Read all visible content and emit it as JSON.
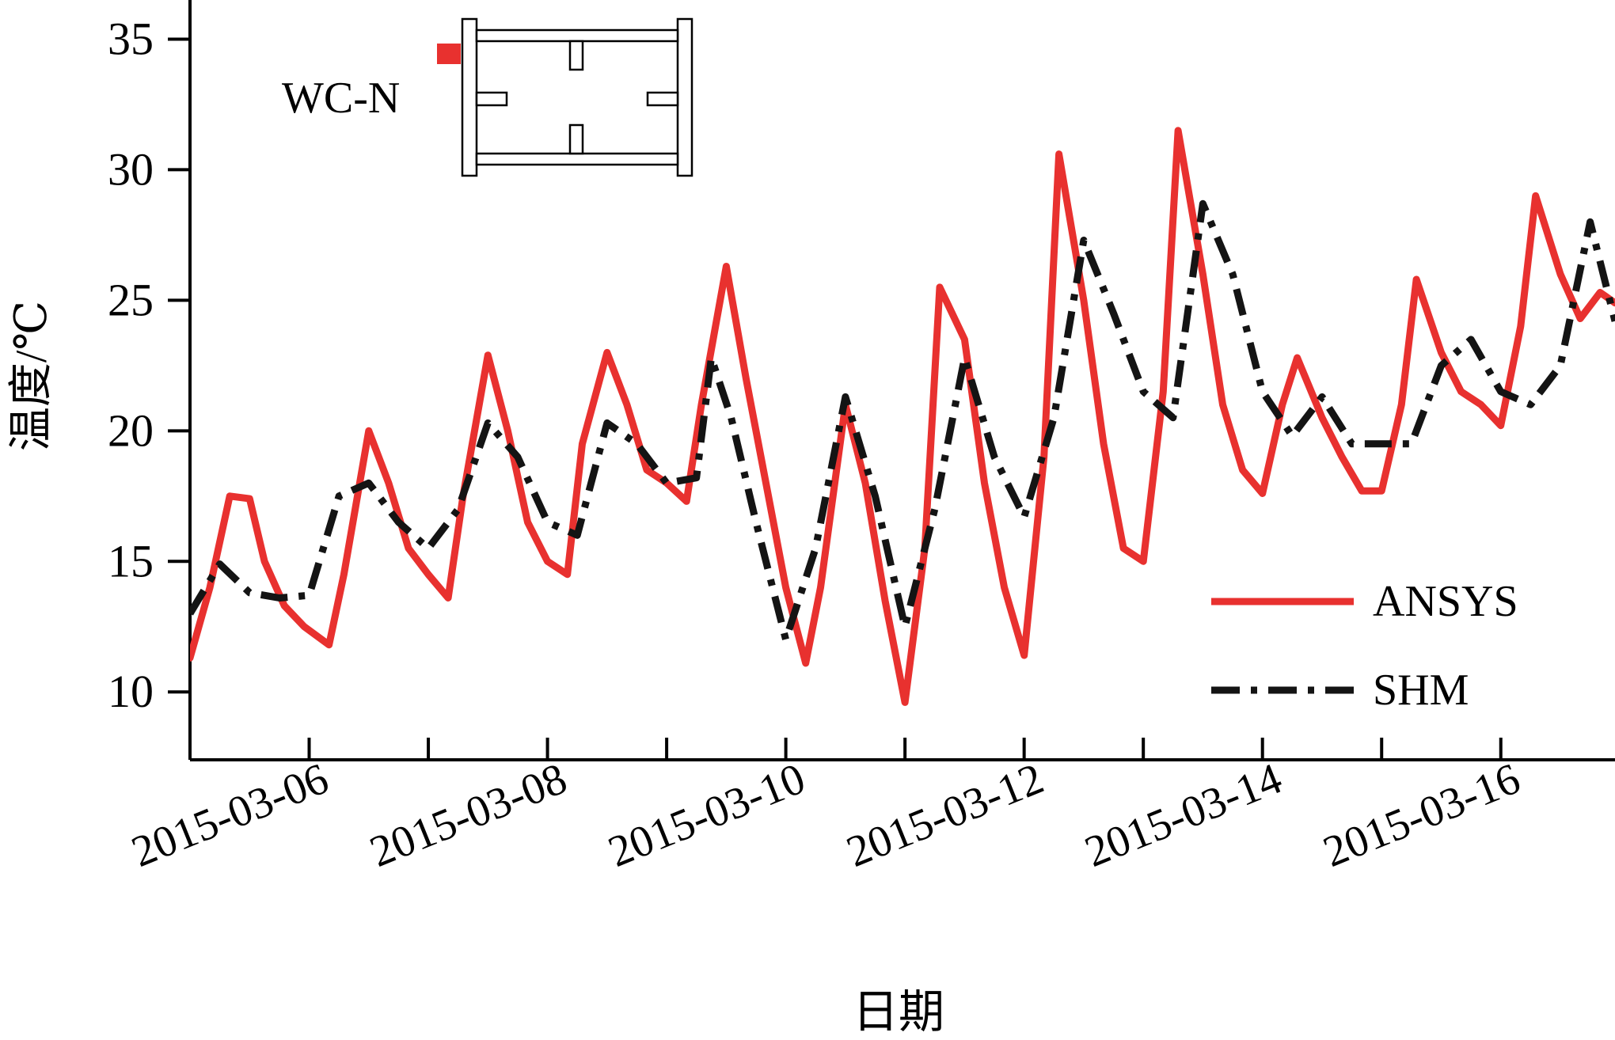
{
  "chart_data": {
    "type": "line",
    "title": "",
    "xlabel": "日期",
    "ylabel": "温度/℃",
    "x_type": "date",
    "xlim": [
      "2015-03-05T00:00",
      "2015-03-16T23:00"
    ],
    "ylim": [
      7.4,
      36.5
    ],
    "yticks": [
      10,
      15,
      20,
      25,
      30,
      35
    ],
    "yticklabels": [
      "10",
      "15",
      "20",
      "25",
      "30",
      "35"
    ],
    "xticks": [
      "2015-03-06",
      "2015-03-07",
      "2015-03-08",
      "2015-03-09",
      "2015-03-10",
      "2015-03-11",
      "2015-03-12",
      "2015-03-13",
      "2015-03-14",
      "2015-03-15",
      "2015-03-16"
    ],
    "xticklabels": [
      "2015-03-06",
      "",
      "2015-03-08",
      "",
      "2015-03-10",
      "",
      "2015-03-12",
      "",
      "2015-03-14",
      "",
      "2015-03-16"
    ],
    "grid": false,
    "legend_position": "lower-right",
    "series": [
      {
        "name": "ANSYS",
        "color": "#e8312f",
        "style": "solid",
        "x": [
          "2015-03-05T00:00",
          "2015-03-05T04:00",
          "2015-03-05T08:00",
          "2015-03-05T12:00",
          "2015-03-05T15:00",
          "2015-03-05T19:00",
          "2015-03-05T23:00",
          "2015-03-06T04:00",
          "2015-03-06T07:00",
          "2015-03-06T12:00",
          "2015-03-06T16:00",
          "2015-03-06T20:00",
          "2015-03-07T00:00",
          "2015-03-07T04:00",
          "2015-03-07T07:00",
          "2015-03-07T12:00",
          "2015-03-07T16:00",
          "2015-03-07T20:00",
          "2015-03-08T00:00",
          "2015-03-08T04:00",
          "2015-03-08T07:00",
          "2015-03-08T12:00",
          "2015-03-08T16:00",
          "2015-03-08T20:00",
          "2015-03-09T00:00",
          "2015-03-09T04:00",
          "2015-03-09T07:00",
          "2015-03-09T12:00",
          "2015-03-09T16:00",
          "2015-03-09T20:00",
          "2015-03-10T00:00",
          "2015-03-10T04:00",
          "2015-03-10T07:00",
          "2015-03-10T12:00",
          "2015-03-10T16:00",
          "2015-03-10T20:00",
          "2015-03-11T00:00",
          "2015-03-11T04:00",
          "2015-03-11T07:00",
          "2015-03-11T12:00",
          "2015-03-11T16:00",
          "2015-03-11T20:00",
          "2015-03-12T00:00",
          "2015-03-12T04:00",
          "2015-03-12T07:00",
          "2015-03-12T12:00",
          "2015-03-12T16:00",
          "2015-03-12T20:00",
          "2015-03-13T00:00",
          "2015-03-13T04:00",
          "2015-03-13T07:00",
          "2015-03-13T12:00",
          "2015-03-13T16:00",
          "2015-03-13T20:00",
          "2015-03-14T00:00",
          "2015-03-14T04:00",
          "2015-03-14T07:00",
          "2015-03-14T12:00",
          "2015-03-14T16:00",
          "2015-03-14T20:00",
          "2015-03-15T00:00",
          "2015-03-15T04:00",
          "2015-03-15T07:00",
          "2015-03-15T12:00",
          "2015-03-15T16:00",
          "2015-03-15T20:00",
          "2015-03-16T00:00",
          "2015-03-16T04:00",
          "2015-03-16T07:00",
          "2015-03-16T12:00",
          "2015-03-16T16:00",
          "2015-03-16T20:00",
          "2015-03-16T23:00"
        ],
        "y": [
          11.3,
          14.0,
          17.5,
          17.4,
          15.0,
          13.3,
          12.5,
          11.8,
          14.5,
          20.0,
          18.0,
          15.5,
          14.5,
          13.6,
          17.5,
          22.9,
          20.0,
          16.5,
          15.0,
          14.5,
          19.5,
          23.0,
          21.0,
          18.5,
          18.0,
          17.3,
          21.0,
          26.3,
          22.0,
          18.0,
          14.0,
          11.1,
          14.0,
          21.0,
          18.0,
          13.5,
          9.6,
          15.5,
          25.5,
          23.5,
          18.0,
          14.0,
          11.4,
          19.0,
          30.6,
          25.0,
          19.5,
          15.5,
          15.0,
          21.5,
          31.5,
          26.0,
          21.0,
          18.5,
          17.6,
          21.0,
          22.8,
          20.5,
          19.0,
          17.7,
          17.7,
          21.0,
          25.8,
          23.0,
          21.5,
          21.0,
          20.2,
          24.0,
          29.0,
          26.0,
          24.3,
          25.3,
          24.9
        ]
      },
      {
        "name": "SHM",
        "color": "#141414",
        "style": "dashdot",
        "x": [
          "2015-03-05T00:00",
          "2015-03-05T06:00",
          "2015-03-05T12:00",
          "2015-03-05T18:00",
          "2015-03-06T00:00",
          "2015-03-06T06:00",
          "2015-03-06T12:00",
          "2015-03-06T18:00",
          "2015-03-07T00:00",
          "2015-03-07T06:00",
          "2015-03-07T12:00",
          "2015-03-07T18:00",
          "2015-03-08T00:00",
          "2015-03-08T06:00",
          "2015-03-08T12:00",
          "2015-03-08T18:00",
          "2015-03-09T00:00",
          "2015-03-09T06:00",
          "2015-03-09T09:00",
          "2015-03-09T13:00",
          "2015-03-09T18:00",
          "2015-03-10T00:00",
          "2015-03-10T06:00",
          "2015-03-10T12:00",
          "2015-03-10T18:00",
          "2015-03-11T00:00",
          "2015-03-11T06:00",
          "2015-03-11T12:00",
          "2015-03-11T18:00",
          "2015-03-12T00:00",
          "2015-03-12T06:00",
          "2015-03-12T12:00",
          "2015-03-12T18:00",
          "2015-03-13T00:00",
          "2015-03-13T06:00",
          "2015-03-13T12:00",
          "2015-03-13T18:00",
          "2015-03-14T00:00",
          "2015-03-14T06:00",
          "2015-03-14T12:00",
          "2015-03-14T18:00",
          "2015-03-15T00:00",
          "2015-03-15T06:00",
          "2015-03-15T12:00",
          "2015-03-15T18:00",
          "2015-03-16T00:00",
          "2015-03-16T06:00",
          "2015-03-16T12:00",
          "2015-03-16T18:00",
          "2015-03-16T23:00"
        ],
        "y": [
          13.0,
          14.9,
          13.8,
          13.6,
          13.7,
          17.5,
          18.0,
          16.5,
          15.5,
          17.0,
          20.3,
          19.0,
          16.5,
          16.0,
          20.3,
          19.5,
          18.0,
          18.2,
          22.8,
          20.5,
          16.5,
          12.0,
          15.5,
          21.3,
          17.5,
          12.5,
          17.0,
          22.8,
          19.0,
          16.7,
          20.5,
          27.3,
          24.5,
          21.5,
          20.5,
          28.7,
          26.0,
          21.5,
          19.8,
          21.3,
          19.5,
          19.5,
          19.5,
          22.5,
          23.5,
          21.5,
          21.0,
          22.5,
          28.0,
          24.2
        ]
      }
    ],
    "inset": {
      "label": "WC-N",
      "marker_color": "#e8312f"
    }
  }
}
